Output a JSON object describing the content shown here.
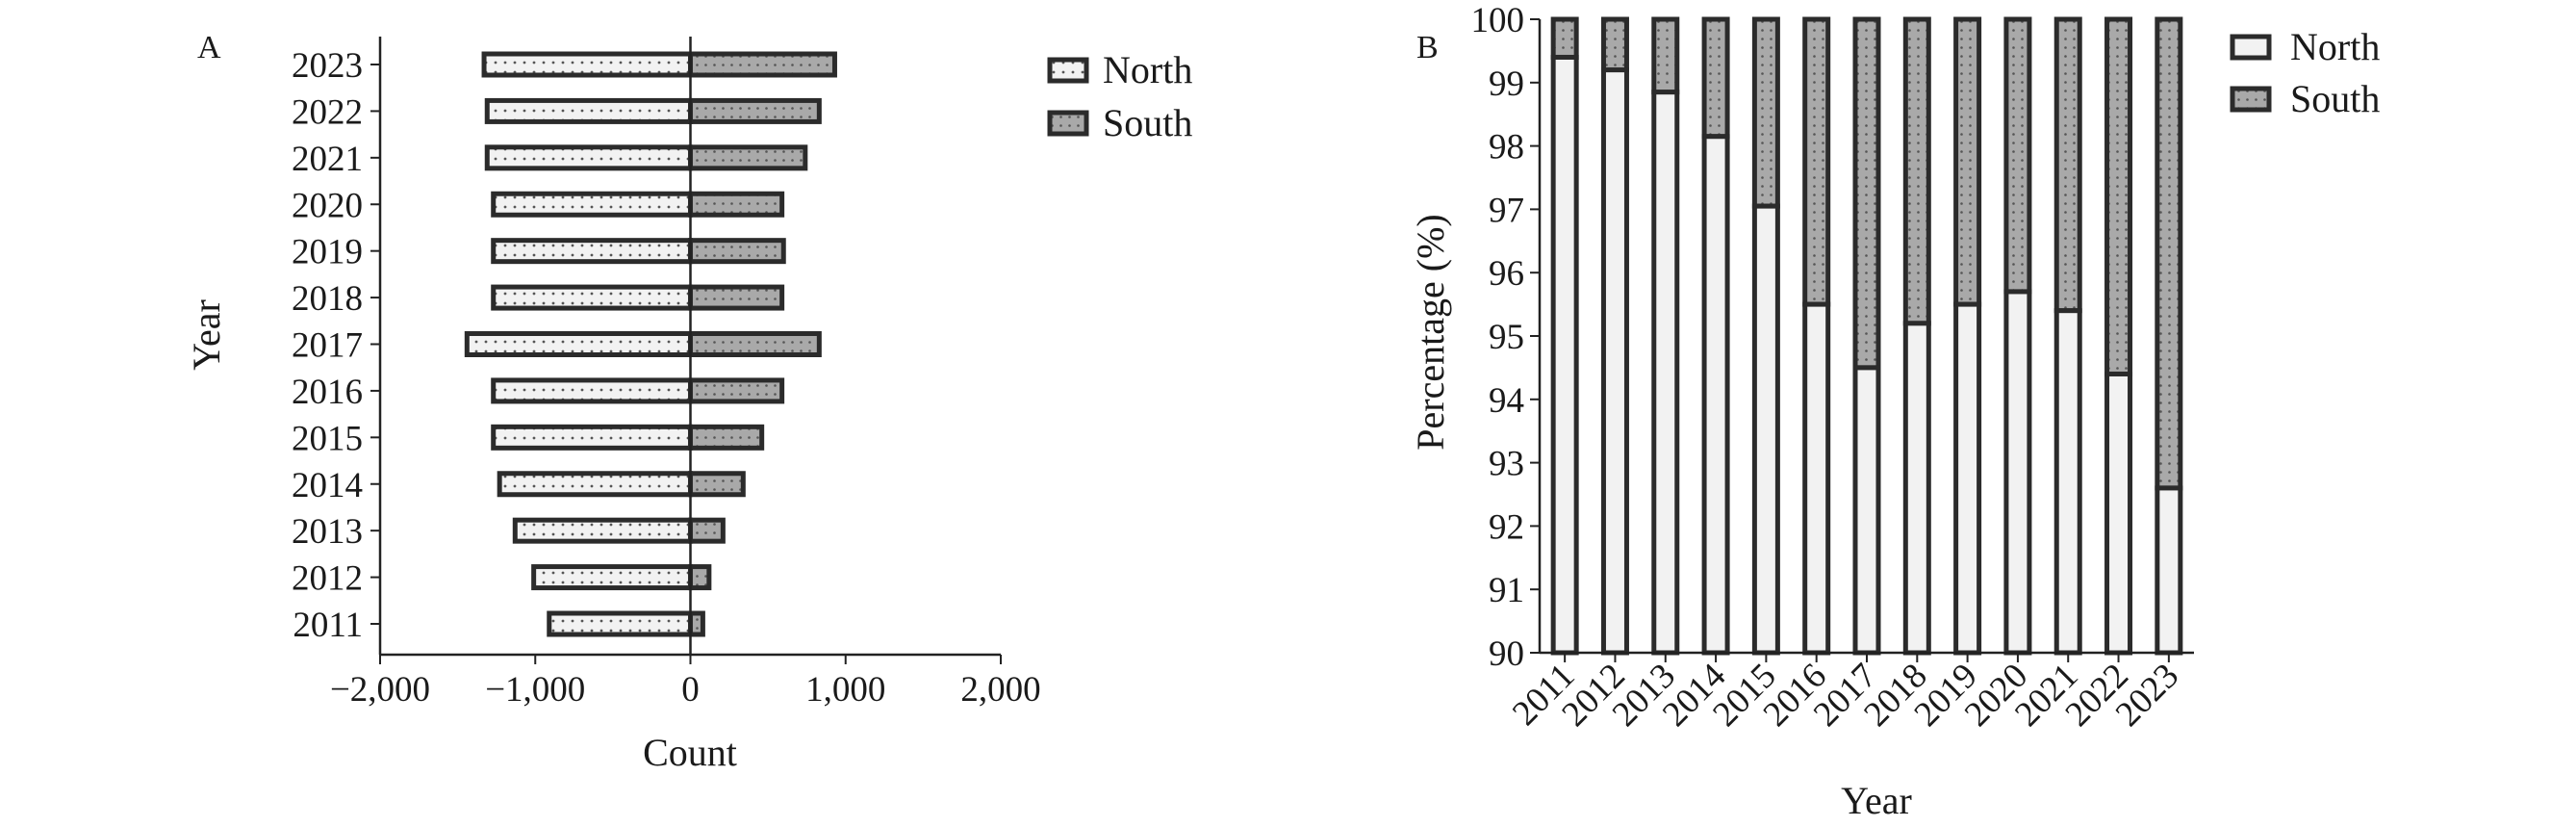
{
  "colors": {
    "north_fill": "#f2f2f2",
    "south_fill": "#a9a9a9",
    "outline": "#2b2b2b"
  },
  "chart_data": [
    {
      "panel": "A",
      "type": "bar",
      "orientation": "horizontal",
      "layout": "diverging",
      "categories": [
        "2011",
        "2012",
        "2013",
        "2014",
        "2015",
        "2016",
        "2017",
        "2018",
        "2019",
        "2020",
        "2021",
        "2022",
        "2023"
      ],
      "series": [
        {
          "name": "North",
          "values": [
            -910,
            -1010,
            -1130,
            -1230,
            -1270,
            -1270,
            -1440,
            -1270,
            -1270,
            -1270,
            -1310,
            -1310,
            -1330
          ]
        },
        {
          "name": "South",
          "values": [
            80,
            120,
            210,
            340,
            460,
            590,
            830,
            590,
            600,
            590,
            740,
            830,
            930
          ]
        }
      ],
      "xlabel": "Count",
      "ylabel": "Year",
      "xlim": [
        -2000,
        2000
      ],
      "xticks": [
        -2000,
        -1000,
        0,
        1000,
        2000
      ],
      "xtick_labels": [
        "−2,000",
        "−1,000",
        "0",
        "1,000",
        "2,000"
      ],
      "legend": {
        "placement": "top-right",
        "entries": [
          "North",
          "South"
        ]
      }
    },
    {
      "panel": "B",
      "type": "bar",
      "orientation": "vertical",
      "layout": "stacked-percent",
      "categories": [
        "2011",
        "2012",
        "2013",
        "2014",
        "2015",
        "2016",
        "2017",
        "2018",
        "2019",
        "2020",
        "2021",
        "2022",
        "2023"
      ],
      "series": [
        {
          "name": "North",
          "values": [
            99.4,
            99.2,
            98.85,
            98.15,
            97.05,
            95.5,
            94.5,
            95.2,
            95.5,
            95.7,
            95.4,
            94.4,
            92.6
          ]
        },
        {
          "name": "South",
          "values": [
            0.6,
            0.8,
            1.15,
            1.85,
            2.95,
            4.5,
            5.5,
            4.8,
            4.5,
            4.3,
            4.6,
            5.6,
            7.4
          ]
        }
      ],
      "xlabel": "Year",
      "ylabel": "Percentage (%)",
      "ylim": [
        90,
        100
      ],
      "yticks": [
        90,
        91,
        92,
        93,
        94,
        95,
        96,
        97,
        98,
        99,
        100
      ],
      "legend": {
        "placement": "top-right",
        "entries": [
          "North",
          "South"
        ]
      }
    }
  ]
}
